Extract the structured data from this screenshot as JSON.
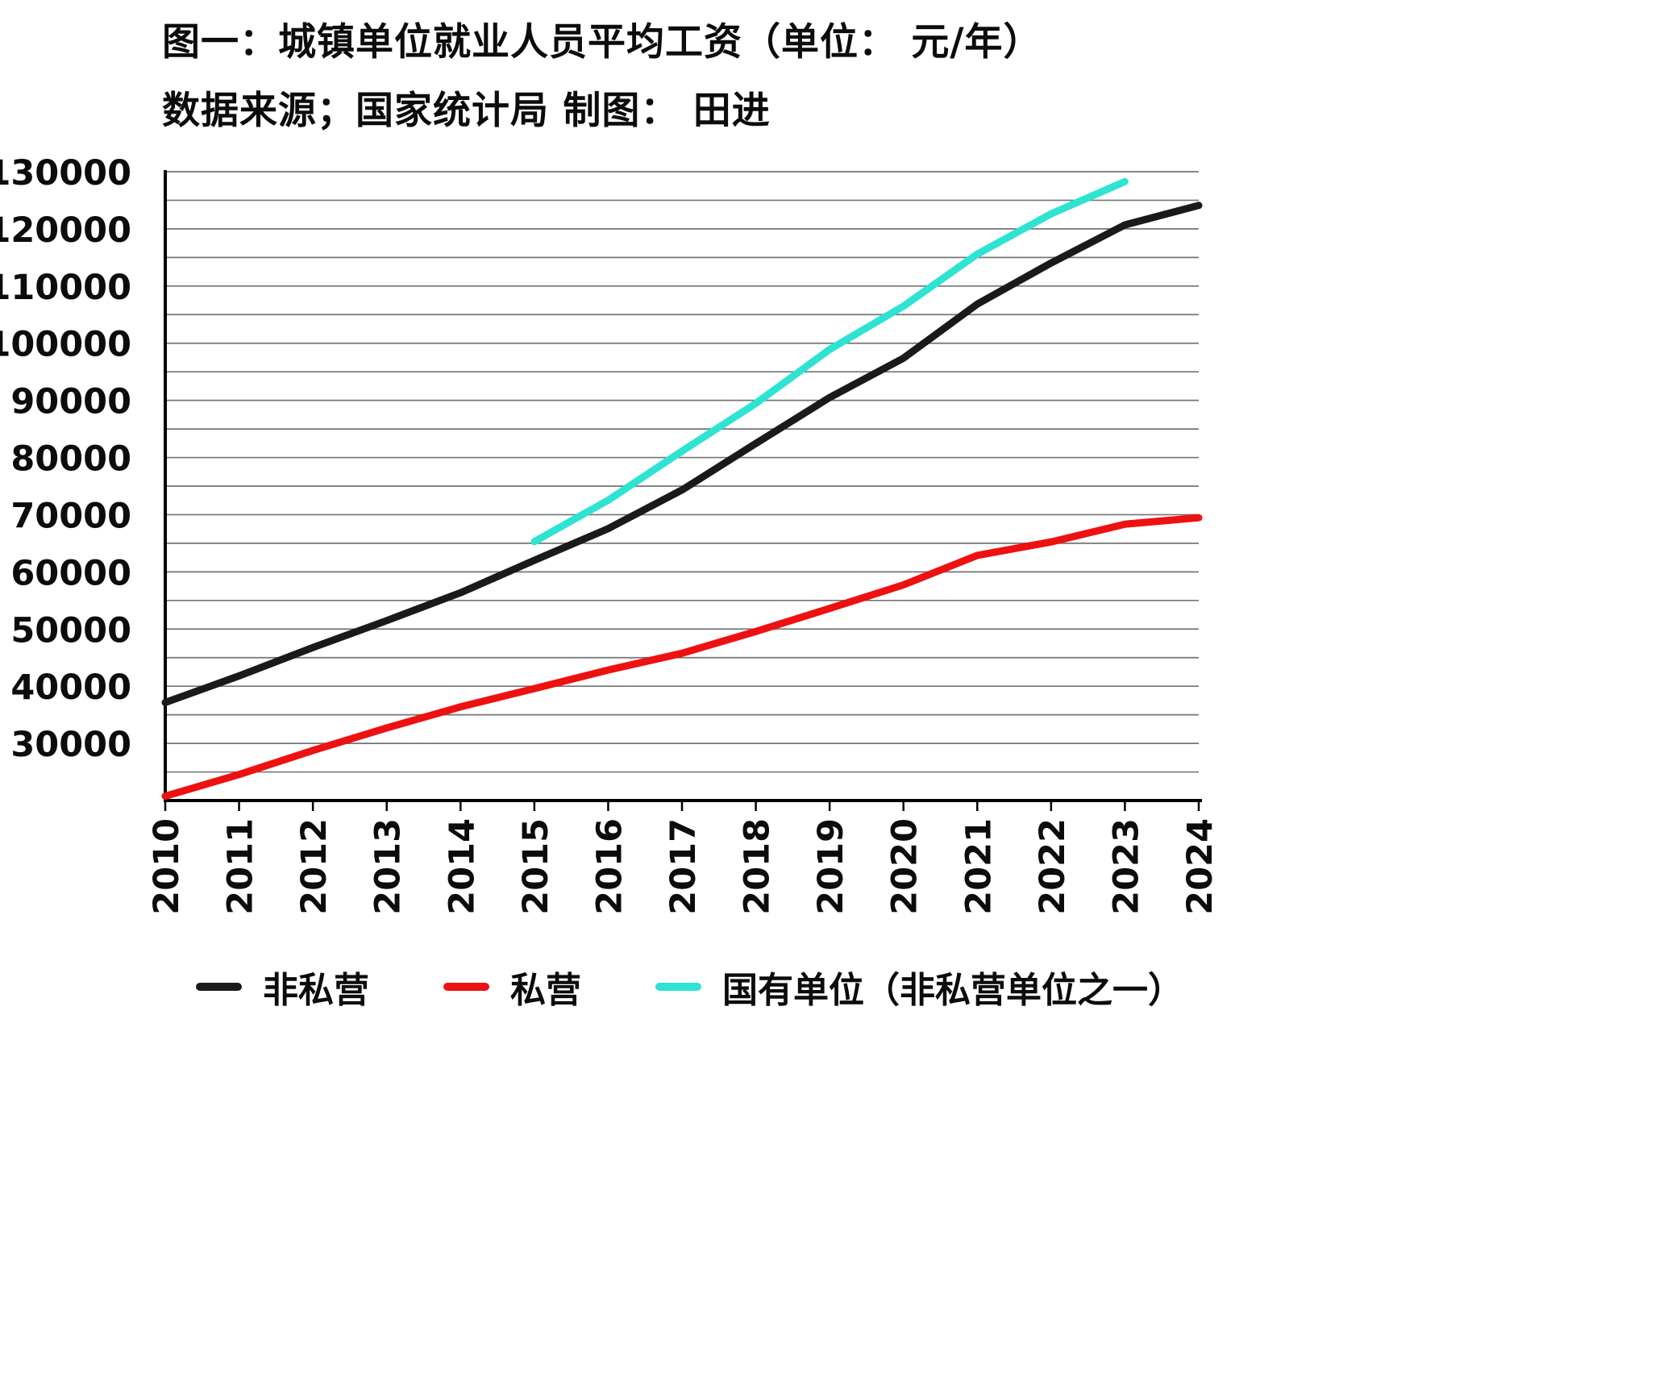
{
  "chart_data": {
    "type": "line",
    "title": "图一：城镇单位就业人员平均工资（单位： 元/年）",
    "subtitle": "数据来源；国家统计局 制图： 田进",
    "x": [
      2010,
      2011,
      2012,
      2013,
      2014,
      2015,
      2016,
      2017,
      2018,
      2019,
      2020,
      2021,
      2022,
      2023,
      2024
    ],
    "xlabel": "",
    "ylabel": "",
    "ylim": [
      20000,
      130000
    ],
    "ytick_start": 30000,
    "ytick_step": 10000,
    "grid": {
      "visible": true,
      "start": 25000,
      "step": 5000,
      "color": "#757575"
    },
    "legend_position": "bottom",
    "axis_color": "#000000",
    "series": [
      {
        "name": "非私营",
        "color": "#1a1a1a",
        "values": [
          37147,
          41799,
          46769,
          51474,
          56360,
          62029,
          67569,
          74318,
          82461,
          90501,
          97379,
          106837,
          114029,
          120698,
          124110
        ]
      },
      {
        "name": "私营",
        "color": "#ee1111",
        "values": [
          20759,
          24556,
          28752,
          32706,
          36390,
          39589,
          42833,
          45761,
          49575,
          53604,
          57727,
          62884,
          65237,
          68340,
          69476
        ]
      },
      {
        "name": "国有单位（非私营单位之一）",
        "color": "#2ee3d2",
        "values": [
          null,
          null,
          null,
          null,
          null,
          65296,
          72538,
          81114,
          89474,
          98899,
          106474,
          115583,
          122642,
          128265,
          null
        ]
      }
    ]
  }
}
